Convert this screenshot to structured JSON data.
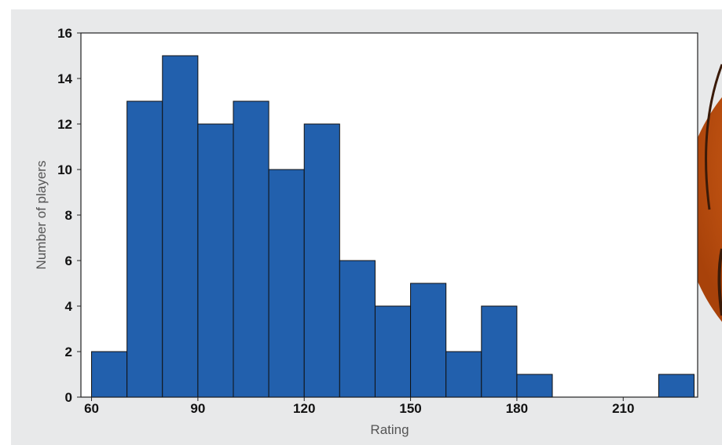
{
  "chart_data": {
    "type": "bar",
    "title": "",
    "xlabel": "Rating",
    "ylabel": "Number of players",
    "bin_edges": [
      60,
      70,
      80,
      90,
      100,
      110,
      120,
      130,
      140,
      150,
      160,
      170,
      180,
      190,
      200,
      210,
      220,
      230
    ],
    "values": [
      2,
      13,
      15,
      12,
      13,
      10,
      12,
      6,
      4,
      5,
      2,
      4,
      1,
      0,
      0,
      0,
      1
    ],
    "xlim": [
      57,
      231
    ],
    "ylim": [
      0,
      16
    ],
    "xticks": [
      60,
      90,
      120,
      150,
      180,
      210
    ],
    "yticks": [
      0,
      2,
      4,
      6,
      8,
      10,
      12,
      14,
      16
    ],
    "grid": false,
    "legend": "none",
    "bar_color": "#2260ad",
    "bar_edge_color": "#111111",
    "background_color": "#e8e9ea",
    "plot_background": "#ffffff"
  },
  "decoration": {
    "image": "basketball-image",
    "colors": [
      "#e0691c",
      "#f08a2e",
      "#b4480c"
    ]
  }
}
